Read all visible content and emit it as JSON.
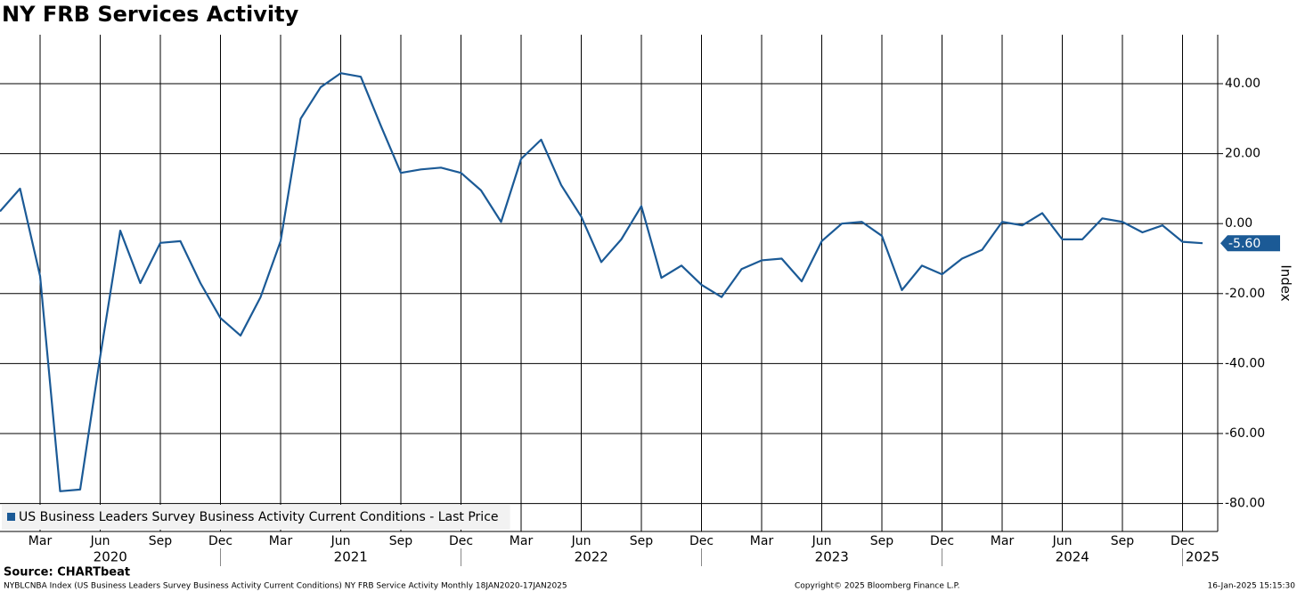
{
  "chart_data": {
    "type": "line",
    "title": "NY FRB Services Activity",
    "y_axis_label": "Index",
    "x": [
      "2020-01",
      "2020-02",
      "2020-03",
      "2020-04",
      "2020-05",
      "2020-06",
      "2020-07",
      "2020-08",
      "2020-09",
      "2020-10",
      "2020-11",
      "2020-12",
      "2021-01",
      "2021-02",
      "2021-03",
      "2021-04",
      "2021-05",
      "2021-06",
      "2021-07",
      "2021-08",
      "2021-09",
      "2021-10",
      "2021-11",
      "2021-12",
      "2022-01",
      "2022-02",
      "2022-03",
      "2022-04",
      "2022-05",
      "2022-06",
      "2022-07",
      "2022-08",
      "2022-09",
      "2022-10",
      "2022-11",
      "2022-12",
      "2023-01",
      "2023-02",
      "2023-03",
      "2023-04",
      "2023-05",
      "2023-06",
      "2023-07",
      "2023-08",
      "2023-09",
      "2023-10",
      "2023-11",
      "2023-12",
      "2024-01",
      "2024-02",
      "2024-03",
      "2024-04",
      "2024-05",
      "2024-06",
      "2024-07",
      "2024-08",
      "2024-09",
      "2024-10",
      "2024-11",
      "2024-12",
      "2025-01"
    ],
    "series": [
      {
        "name": "US Business Leaders Survey Business Activity Current Conditions - Last Price",
        "color": "#1b5a96",
        "values": [
          3.5,
          10,
          -15,
          -76.5,
          -76,
          -38,
          -2,
          -17,
          -5.5,
          -5,
          -17,
          -27,
          -32,
          -21,
          -5,
          30,
          39,
          43,
          42,
          28,
          14.5,
          15.5,
          16,
          14.5,
          9.5,
          0.5,
          18.5,
          24,
          11,
          2,
          -11,
          -4.5,
          5,
          -15.5,
          -12,
          -17.5,
          -21,
          -13,
          -10.5,
          -10,
          -16.5,
          -5,
          0,
          0.5,
          -3.5,
          -19,
          -12,
          -14.5,
          -10,
          -7.5,
          0.5,
          -0.5,
          3,
          -4.5,
          -4.5,
          1.5,
          0.5,
          -2.5,
          -0.5,
          -5.2,
          -5.6
        ],
        "value_labels": [
          null,
          null,
          null,
          null,
          null,
          null,
          null,
          null,
          null,
          null,
          null,
          null,
          null,
          null,
          null,
          null,
          null,
          null,
          null,
          null,
          null,
          null,
          null,
          null,
          null,
          null,
          null,
          null,
          null,
          null,
          null,
          null,
          null,
          null,
          null,
          null,
          null,
          null,
          null,
          null,
          null,
          null,
          null,
          null,
          null,
          null,
          null,
          null,
          null,
          null,
          null,
          null,
          null,
          null,
          null,
          null,
          null,
          null,
          null,
          null,
          "-5.60"
        ]
      }
    ],
    "ylim": [
      -88,
      54
    ],
    "yticks": [
      {
        "value": 40,
        "label": "40.00"
      },
      {
        "value": 20,
        "label": "20.00"
      },
      {
        "value": 0,
        "label": "0.00"
      },
      {
        "value": -20,
        "label": "-20.00"
      },
      {
        "value": -40,
        "label": "-40.00"
      },
      {
        "value": -60,
        "label": "-60.00"
      },
      {
        "value": -80,
        "label": "-80.00"
      }
    ],
    "xticks": [
      {
        "value": "2020-03",
        "label": "Mar"
      },
      {
        "value": "2020-06",
        "label": "Jun"
      },
      {
        "value": "2020-09",
        "label": "Sep"
      },
      {
        "value": "2020-12",
        "label": "Dec"
      },
      {
        "value": "2021-03",
        "label": "Mar"
      },
      {
        "value": "2021-06",
        "label": "Jun"
      },
      {
        "value": "2021-09",
        "label": "Sep"
      },
      {
        "value": "2021-12",
        "label": "Dec"
      },
      {
        "value": "2022-03",
        "label": "Mar"
      },
      {
        "value": "2022-06",
        "label": "Jun"
      },
      {
        "value": "2022-09",
        "label": "Sep"
      },
      {
        "value": "2022-12",
        "label": "Dec"
      },
      {
        "value": "2023-03",
        "label": "Mar"
      },
      {
        "value": "2023-06",
        "label": "Jun"
      },
      {
        "value": "2023-09",
        "label": "Sep"
      },
      {
        "value": "2023-12",
        "label": "Dec"
      },
      {
        "value": "2024-03",
        "label": "Mar"
      },
      {
        "value": "2024-06",
        "label": "Jun"
      },
      {
        "value": "2024-09",
        "label": "Sep"
      },
      {
        "value": "2024-12",
        "label": "Dec"
      }
    ],
    "years": [
      "2020",
      "2021",
      "2022",
      "2023",
      "2024",
      "2025"
    ],
    "grid": true,
    "legend": "bottom-left",
    "source": "Source: CHARTbeat",
    "footer_description": "NYBLCNBA Index (US Business Leaders Survey Business Activity Current Conditions) NY FRB Service Activity  Monthly 18JAN2020-17JAN2025",
    "copyright": "Copyright© 2025 Bloomberg Finance L.P.",
    "timestamp": "16-Jan-2025 15:15:30"
  }
}
